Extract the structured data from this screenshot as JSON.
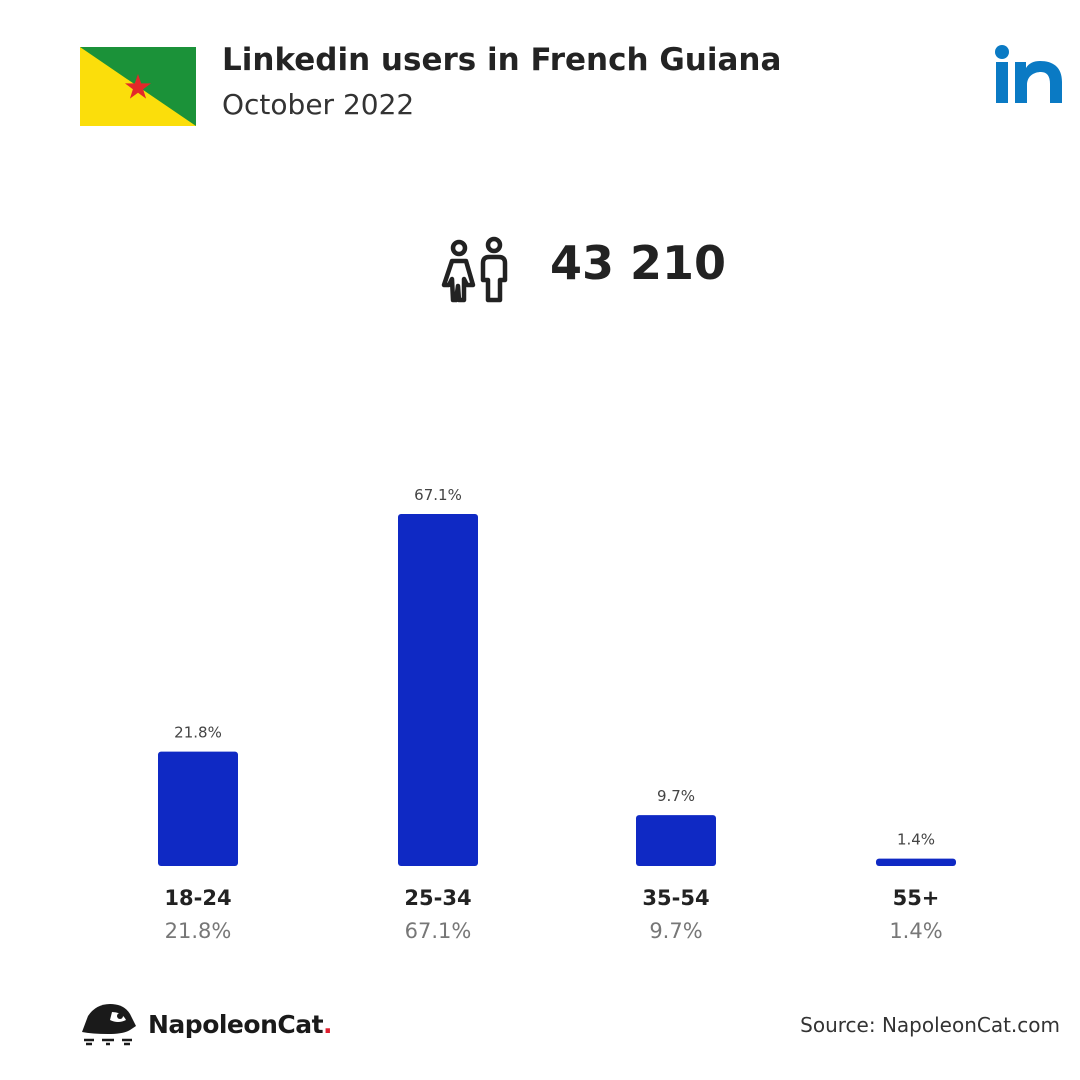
{
  "header": {
    "title": "Linkedin users in French Guiana",
    "subtitle": "October 2022"
  },
  "icons": {
    "flag": "french-guiana-flag",
    "logo": "linkedin-logo",
    "users": "people-icon",
    "brand": "napoleoncat-logo"
  },
  "colors": {
    "bar": "#0f29c4",
    "linkedin": "#0a7ac4",
    "flag_green": "#1b9239",
    "flag_yellow": "#fbde0b",
    "flag_star": "#e3282a"
  },
  "summary": {
    "total_users": "43 210"
  },
  "chart_data": {
    "type": "bar",
    "categories": [
      "18-24",
      "25-34",
      "35-54",
      "55+"
    ],
    "values": [
      21.8,
      67.1,
      9.7,
      1.4
    ],
    "value_labels": [
      "21.8%",
      "67.1%",
      "9.7%",
      "1.4%"
    ],
    "ylim": [
      0,
      67.1
    ],
    "grid": false,
    "legend": "none"
  },
  "footer": {
    "brand_name": "NapoleonCat",
    "brand_dot": ".",
    "source": "Source: NapoleonCat.com"
  }
}
